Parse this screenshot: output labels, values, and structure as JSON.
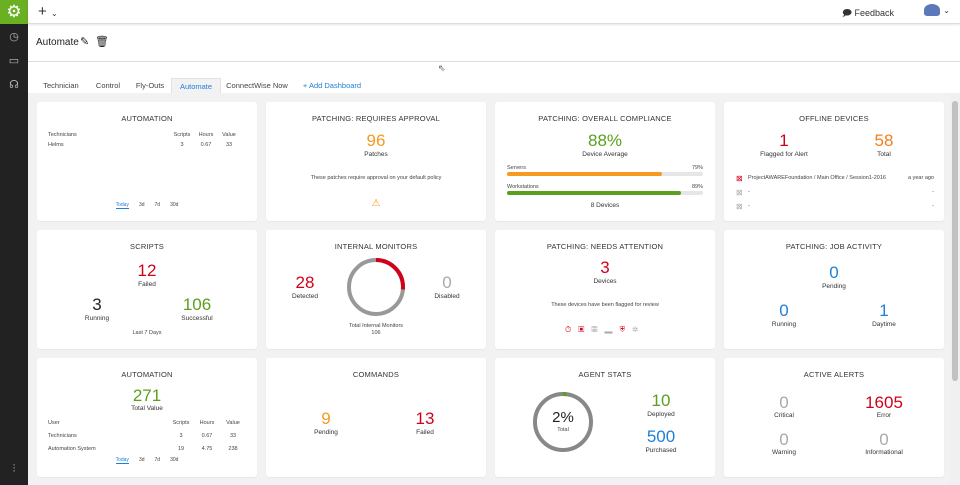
{
  "topbar": {
    "add_label": "+",
    "feedback_label": "Feedback"
  },
  "header": {
    "title": "Automate"
  },
  "tabs": [
    {
      "label": "Technician"
    },
    {
      "label": "Control"
    },
    {
      "label": "Fly-Outs"
    },
    {
      "label": "Automate",
      "active": true
    },
    {
      "label": "ConnectWise Now"
    },
    {
      "label": "+ Add Dashboard"
    }
  ],
  "colors": {
    "brand": "#6ab023",
    "accent": "#1e7fd8",
    "error": "#d0021b",
    "warning": "#f59a23",
    "success": "#5aa01e"
  },
  "ranges": [
    "Today",
    "3d",
    "7d",
    "30d"
  ],
  "automation1": {
    "title": "AUTOMATION",
    "headers": [
      "Technicians",
      "Scripts",
      "Hours",
      "Value"
    ],
    "rows": [
      [
        "Helms",
        "3",
        "0.67",
        "33"
      ]
    ]
  },
  "requires_approval": {
    "title": "PATCHING: REQUIRES APPROVAL",
    "value": "96",
    "label": "Patches",
    "note": "These patches require approval on your default policy",
    "icon": "warning-icon"
  },
  "compliance": {
    "title": "PATCHING: OVERALL COMPLIANCE",
    "value": "88%",
    "label": "Device Average",
    "bars": [
      {
        "name": "Servers",
        "percent": 79,
        "label": "79%",
        "color": "#f59a23"
      },
      {
        "name": "Workstations",
        "percent": 89,
        "label": "89%",
        "color": "#5aa01e"
      }
    ],
    "footer": "8 Devices"
  },
  "offline": {
    "title": "OFFLINE DEVICES",
    "flagged": "1",
    "flagged_label": "Flagged for Alert",
    "total": "58",
    "total_label": "Total",
    "items": [
      {
        "name": "ProjectAWAREFoundation / Main Office / Session1-2016",
        "time": "a year ago"
      },
      {
        "name": "-",
        "time": "-"
      },
      {
        "name": "-",
        "time": "-"
      }
    ]
  },
  "scripts": {
    "title": "SCRIPTS",
    "failed": "12",
    "failed_label": "Failed",
    "running": "3",
    "running_label": "Running",
    "successful": "106",
    "successful_label": "Successful",
    "footer": "Last 7 Days"
  },
  "monitors": {
    "title": "INTERNAL MONITORS",
    "detected": "28",
    "detected_label": "Detected",
    "disabled": "0",
    "disabled_label": "Disabled",
    "total_label": "Total Internal Monitors",
    "total": "106",
    "detected_fraction": 0.264
  },
  "needs_attention": {
    "title": "PATCHING: NEEDS ATTENTION",
    "value": "3",
    "label": "Devices",
    "note": "These devices have been flagged for review"
  },
  "job_activity": {
    "title": "PATCHING: JOB ACTIVITY",
    "pending": "0",
    "pending_label": "Pending",
    "running": "0",
    "running_label": "Running",
    "daytime": "1",
    "daytime_label": "Daytime"
  },
  "automation2": {
    "title": "AUTOMATION",
    "value": "271",
    "label": "Total Value",
    "headers": [
      "User",
      "Scripts",
      "Hours",
      "Value"
    ],
    "rows": [
      [
        "Technicians",
        "3",
        "0.67",
        "33"
      ],
      [
        "Automation System",
        "19",
        "4.75",
        "238"
      ]
    ]
  },
  "commands": {
    "title": "COMMANDS",
    "pending": "9",
    "pending_label": "Pending",
    "failed": "13",
    "failed_label": "Failed"
  },
  "agent_stats": {
    "title": "AGENT STATS",
    "percent": "2%",
    "percent_label": "Total",
    "fraction": 0.02,
    "deployed": "10",
    "deployed_label": "Deployed",
    "purchased": "500",
    "purchased_label": "Purchased"
  },
  "alerts": {
    "title": "ACTIVE ALERTS",
    "critical": "0",
    "critical_label": "Critical",
    "error": "1605",
    "error_label": "Error",
    "warning": "0",
    "warning_label": "Warning",
    "informational": "0",
    "informational_label": "Informational"
  }
}
